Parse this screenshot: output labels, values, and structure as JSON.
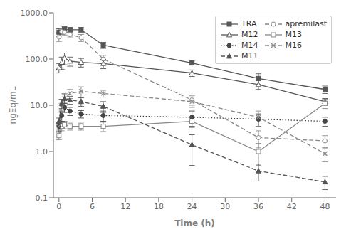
{
  "chart_data": {
    "type": "line",
    "xlabel": "Time (h)",
    "ylabel": "ngEq/mL",
    "log": "y",
    "grid": false,
    "legend": "upper right",
    "xlim": [
      -1,
      50
    ],
    "ylim": [
      0.1,
      1000.0
    ],
    "xticks": [
      0,
      6,
      12,
      18,
      24,
      30,
      36,
      42,
      48
    ],
    "yticks": [
      0.1,
      {
        "value": 1.0,
        "label": "1.0"
      },
      {
        "value": 10.0,
        "label": "10.0"
      },
      {
        "value": 100.0,
        "label": "100.0"
      },
      {
        "value": 1000.0,
        "label": "1000.0"
      }
    ],
    "series": [
      {
        "name": "TRA",
        "color": "#555555",
        "line_style": "solid",
        "marker": "filled square",
        "x": [
          0,
          1,
          2,
          4,
          8,
          24,
          36,
          48
        ],
        "values": [
          380,
          440,
          430,
          430,
          200,
          82,
          38,
          22
        ],
        "yerr": [
          70,
          60,
          50,
          50,
          30,
          8,
          10,
          4
        ]
      },
      {
        "name": "apremilast",
        "color": "#888888",
        "line_style": "dashed",
        "marker": "open circle",
        "x": [
          0,
          0.5,
          1,
          2,
          4,
          8,
          24,
          36,
          48
        ],
        "values": [
          300,
          390,
          380,
          340,
          290,
          100,
          13,
          2.0,
          1.7
        ],
        "yerr": [
          60,
          50,
          50,
          40,
          50,
          20,
          3,
          0.8,
          0.5
        ]
      },
      {
        "name": "M12",
        "color": "#555555",
        "line_style": "solid",
        "marker": "open triangle",
        "x": [
          0,
          0.5,
          1,
          2,
          4,
          8,
          24,
          36,
          48
        ],
        "values": [
          65,
          85,
          105,
          90,
          85,
          80,
          50,
          28,
          12
        ],
        "yerr": [
          15,
          25,
          30,
          20,
          18,
          18,
          8,
          6,
          2
        ]
      },
      {
        "name": "M13",
        "color": "#888888",
        "line_style": "solid",
        "marker": "open square",
        "x": [
          0,
          0.5,
          1,
          2,
          4,
          8,
          24,
          36,
          48
        ],
        "values": [
          2.2,
          3.5,
          3.8,
          3.5,
          3.5,
          3.5,
          4.5,
          1.0,
          11
        ],
        "yerr": [
          0.4,
          0.7,
          0.7,
          0.6,
          0.6,
          0.8,
          1.2,
          0.5,
          2.5
        ]
      },
      {
        "name": "M14",
        "color": "#444444",
        "line_style": "dotted",
        "marker": "filled circle",
        "x": [
          0,
          0.5,
          1,
          2,
          4,
          8,
          24,
          36,
          48
        ],
        "values": [
          3.5,
          6.0,
          9.0,
          7.5,
          6.5,
          6.0,
          5.5,
          5.0,
          4.5
        ],
        "yerr": [
          0.8,
          1.5,
          2.0,
          1.5,
          1.2,
          1.5,
          2.0,
          1.5,
          1.0
        ]
      },
      {
        "name": "M16",
        "color": "#888888",
        "line_style": "dashed",
        "marker": "cross",
        "x": [
          0,
          0.5,
          1,
          2,
          4,
          8,
          24,
          36,
          48
        ],
        "values": [
          3.5,
          9.0,
          14,
          18,
          20,
          18,
          12,
          5.5,
          0.9
        ],
        "yerr": [
          0.6,
          2.0,
          4,
          4,
          5,
          3,
          3,
          2.0,
          0.3
        ]
      },
      {
        "name": "M11",
        "color": "#555555",
        "line_style": "dashed",
        "marker": "filled triangle",
        "x": [
          0,
          0.5,
          1,
          2,
          4,
          8,
          24,
          36,
          48
        ],
        "values": [
          4.5,
          11,
          14,
          13,
          12,
          9.5,
          1.4,
          0.38,
          0.22
        ],
        "yerr": [
          0.8,
          2.5,
          3,
          2.5,
          2.5,
          2.5,
          0.9,
          0.15,
          0.07
        ]
      }
    ]
  }
}
